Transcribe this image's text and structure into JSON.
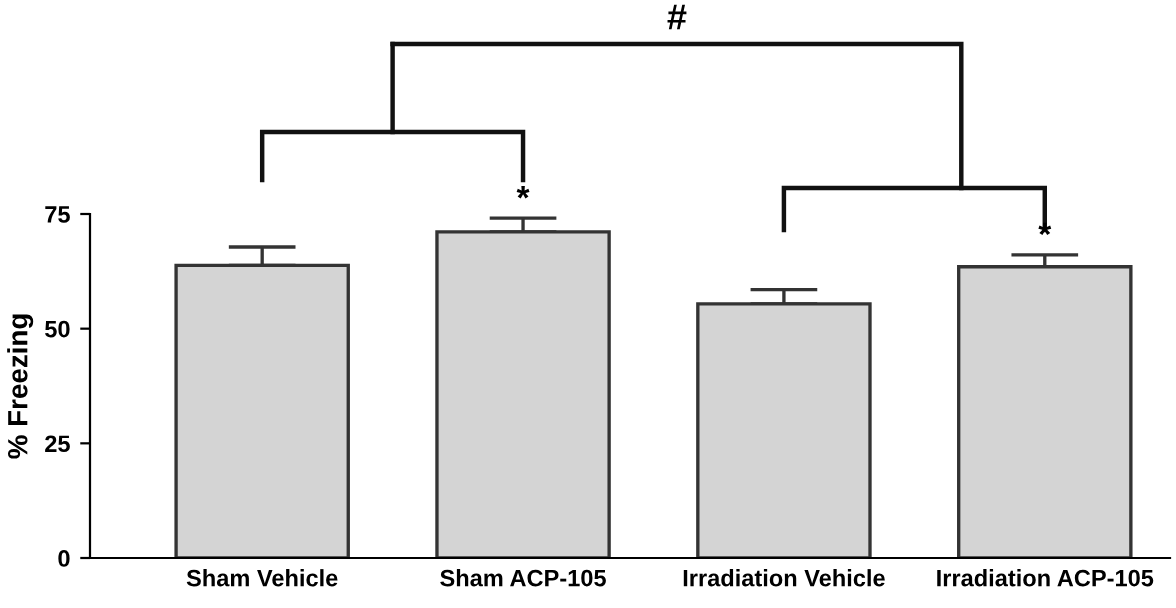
{
  "chart_data": {
    "type": "bar",
    "ylabel": "% Freezing",
    "categories": [
      "Sham Vehicle",
      "Sham ACP-105",
      "Irradiation Vehicle",
      "Irradiation ACP-105"
    ],
    "values": [
      63.8,
      71.1,
      55.4,
      63.5
    ],
    "errors": [
      [
        63.8,
        67.8
      ],
      [
        71.1,
        74.1
      ],
      [
        55.4,
        58.5
      ],
      [
        63.5,
        66.1
      ]
    ],
    "color": "#d4d4d4",
    "ylim": [
      0,
      75
    ],
    "yticks": [
      0,
      25,
      50,
      75
    ],
    "grid": false,
    "legend": false,
    "annotations": [
      {
        "text": "*",
        "x": "Sham ACP-105",
        "y": 74.1
      },
      {
        "text": "*",
        "x": "Irradiation ACP-105",
        "y": 66.1
      },
      "#"
    ]
  }
}
